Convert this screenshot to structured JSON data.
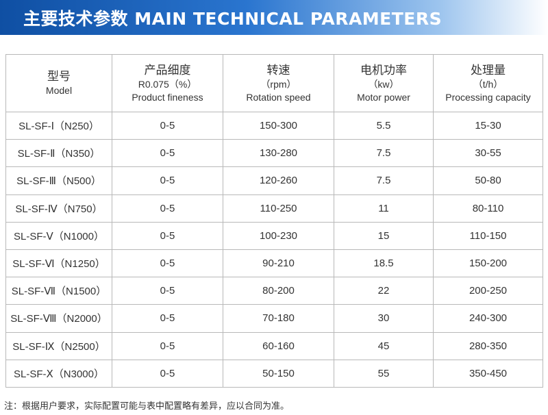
{
  "banner": {
    "title": "主要技术参数 MAIN TECHNICAL PARAMETERS"
  },
  "table": {
    "columns": [
      {
        "cn": "型号",
        "sub": "",
        "en": "Model"
      },
      {
        "cn": "产品细度",
        "sub": "R0.075（%）",
        "en": "Product fineness"
      },
      {
        "cn": "转速",
        "sub": "（rpm）",
        "en": "Rotation speed"
      },
      {
        "cn": "电机功率",
        "sub": "（kw）",
        "en": "Motor power"
      },
      {
        "cn": "处理量",
        "sub": "（t/h）",
        "en": "Processing capacity"
      }
    ],
    "rows": [
      [
        "SL-SF-Ⅰ（N250）",
        "0-5",
        "150-300",
        "5.5",
        "15-30"
      ],
      [
        "SL-SF-Ⅱ（N350）",
        "0-5",
        "130-280",
        "7.5",
        "30-55"
      ],
      [
        "SL-SF-Ⅲ（N500）",
        "0-5",
        "120-260",
        "7.5",
        "50-80"
      ],
      [
        "SL-SF-Ⅳ（N750）",
        "0-5",
        "110-250",
        "11",
        "80-110"
      ],
      [
        "SL-SF-Ⅴ（N1000）",
        "0-5",
        "100-230",
        "15",
        "110-150"
      ],
      [
        "SL-SF-Ⅵ（N1250）",
        "0-5",
        "90-210",
        "18.5",
        "150-200"
      ],
      [
        "SL-SF-Ⅶ（N1500）",
        "0-5",
        "80-200",
        "22",
        "200-250"
      ],
      [
        "SL-SF-Ⅷ（N2000）",
        "0-5",
        "70-180",
        "30",
        "240-300"
      ],
      [
        "SL-SF-Ⅸ（N2500）",
        "0-5",
        "60-160",
        "45",
        "280-350"
      ],
      [
        "SL-SF-Ⅹ（N3000）",
        "0-5",
        "50-150",
        "55",
        "350-450"
      ]
    ]
  },
  "note": "注：根据用户要求，实际配置可能与表中配置略有差异，应以合同为准。"
}
